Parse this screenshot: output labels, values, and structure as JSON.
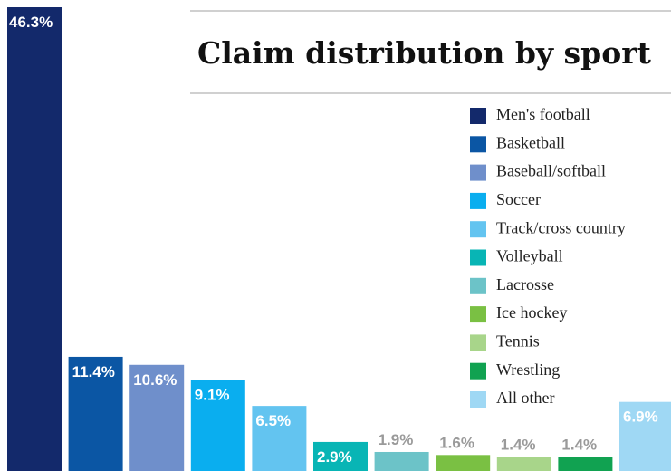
{
  "chart_data": {
    "type": "bar",
    "title": "Claim distribution by sport",
    "categories": [
      "Men's football",
      "Basketball",
      "Baseball/softball",
      "Soccer",
      "Track/cross country",
      "Volleyball",
      "Lacrosse",
      "Ice hockey",
      "Tennis",
      "Wrestling",
      "All other"
    ],
    "values": [
      46.3,
      11.4,
      10.6,
      9.1,
      6.5,
      2.9,
      1.9,
      1.6,
      1.4,
      1.4,
      6.9
    ],
    "value_labels": [
      "46.3%",
      "11.4%",
      "10.6%",
      "9.1%",
      "6.5%",
      "2.9%",
      "1.9%",
      "1.6%",
      "1.4%",
      "1.4%",
      "6.9%"
    ],
    "colors": [
      "#13296b",
      "#0b56a4",
      "#6f8fcb",
      "#0aaeef",
      "#63c4f0",
      "#08b5b5",
      "#6cc3c8",
      "#7ac043",
      "#a8d58a",
      "#11a251",
      "#9fd8f4"
    ],
    "legend": "upper right"
  }
}
